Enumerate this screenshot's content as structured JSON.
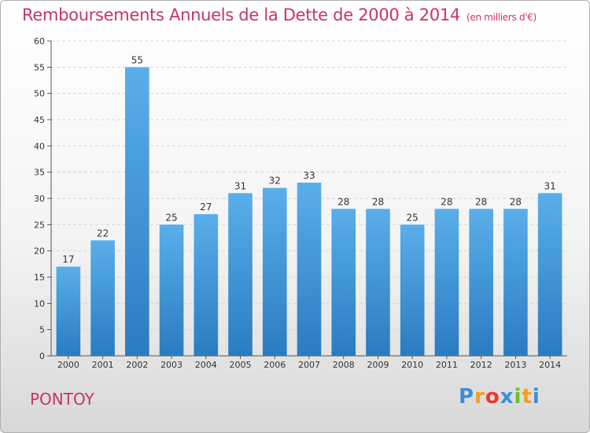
{
  "header": {
    "title": "Remboursements Annuels de la Dette de 2000 à 2014",
    "subtitle": "(en milliers d'€)"
  },
  "footer": {
    "commune": "PONTOY",
    "logo_letters": [
      "P",
      "r",
      "o",
      "x",
      "i",
      "t",
      "i"
    ],
    "logo_colors": [
      "#3a8fd8",
      "#f0a020",
      "#e8382a",
      "#3a8fd8",
      "#6cbf2a",
      "#f0a020",
      "#3a8fd8"
    ]
  },
  "chart_data": {
    "type": "bar",
    "categories": [
      "2000",
      "2001",
      "2002",
      "2003",
      "2004",
      "2005",
      "2006",
      "2007",
      "2008",
      "2009",
      "2010",
      "2011",
      "2012",
      "2013",
      "2014"
    ],
    "values": [
      17,
      22,
      55,
      25,
      27,
      31,
      32,
      33,
      28,
      28,
      25,
      28,
      28,
      28,
      31
    ],
    "ylim": [
      0,
      60
    ],
    "yticks": [
      0,
      5,
      10,
      15,
      20,
      25,
      30,
      35,
      40,
      45,
      50,
      55,
      60
    ],
    "grid": true,
    "bar_color_light": "#5aaeea",
    "bar_color_dark": "#2a7cc0"
  }
}
